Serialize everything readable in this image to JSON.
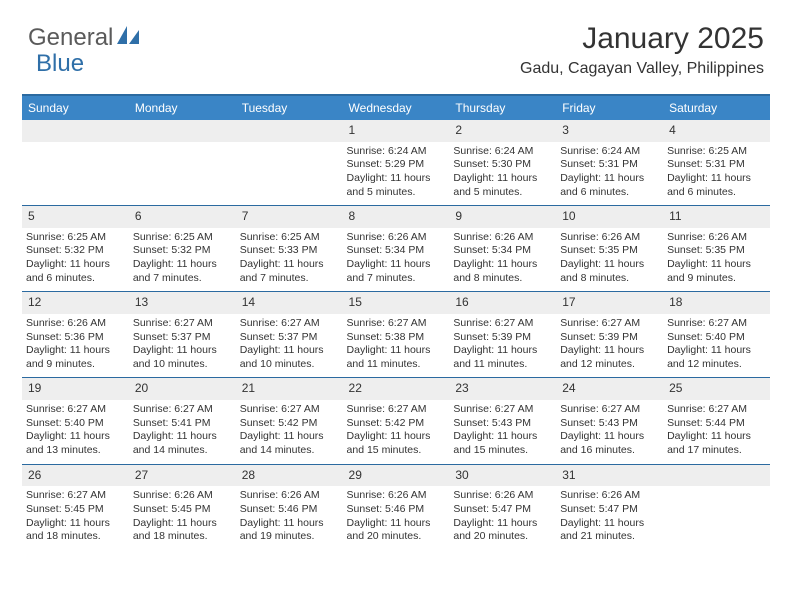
{
  "logo": {
    "text1": "General",
    "text2": "Blue",
    "accent_color": "#2f6fa8",
    "text_color": "#5a5a5a"
  },
  "header": {
    "month_title": "January 2025",
    "location": "Gadu, Cagayan Valley, Philippines"
  },
  "calendar": {
    "header_bg": "#3a85c6",
    "header_text_color": "#ffffff",
    "border_color": "#2b6aa0",
    "daynum_bg": "#eeeeee",
    "days_of_week": [
      "Sunday",
      "Monday",
      "Tuesday",
      "Wednesday",
      "Thursday",
      "Friday",
      "Saturday"
    ],
    "weeks": [
      [
        null,
        null,
        null,
        {
          "d": "1",
          "sr": "6:24 AM",
          "ss": "5:29 PM",
          "dl": "11 hours and 5 minutes."
        },
        {
          "d": "2",
          "sr": "6:24 AM",
          "ss": "5:30 PM",
          "dl": "11 hours and 5 minutes."
        },
        {
          "d": "3",
          "sr": "6:24 AM",
          "ss": "5:31 PM",
          "dl": "11 hours and 6 minutes."
        },
        {
          "d": "4",
          "sr": "6:25 AM",
          "ss": "5:31 PM",
          "dl": "11 hours and 6 minutes."
        }
      ],
      [
        {
          "d": "5",
          "sr": "6:25 AM",
          "ss": "5:32 PM",
          "dl": "11 hours and 6 minutes."
        },
        {
          "d": "6",
          "sr": "6:25 AM",
          "ss": "5:32 PM",
          "dl": "11 hours and 7 minutes."
        },
        {
          "d": "7",
          "sr": "6:25 AM",
          "ss": "5:33 PM",
          "dl": "11 hours and 7 minutes."
        },
        {
          "d": "8",
          "sr": "6:26 AM",
          "ss": "5:34 PM",
          "dl": "11 hours and 7 minutes."
        },
        {
          "d": "9",
          "sr": "6:26 AM",
          "ss": "5:34 PM",
          "dl": "11 hours and 8 minutes."
        },
        {
          "d": "10",
          "sr": "6:26 AM",
          "ss": "5:35 PM",
          "dl": "11 hours and 8 minutes."
        },
        {
          "d": "11",
          "sr": "6:26 AM",
          "ss": "5:35 PM",
          "dl": "11 hours and 9 minutes."
        }
      ],
      [
        {
          "d": "12",
          "sr": "6:26 AM",
          "ss": "5:36 PM",
          "dl": "11 hours and 9 minutes."
        },
        {
          "d": "13",
          "sr": "6:27 AM",
          "ss": "5:37 PM",
          "dl": "11 hours and 10 minutes."
        },
        {
          "d": "14",
          "sr": "6:27 AM",
          "ss": "5:37 PM",
          "dl": "11 hours and 10 minutes."
        },
        {
          "d": "15",
          "sr": "6:27 AM",
          "ss": "5:38 PM",
          "dl": "11 hours and 11 minutes."
        },
        {
          "d": "16",
          "sr": "6:27 AM",
          "ss": "5:39 PM",
          "dl": "11 hours and 11 minutes."
        },
        {
          "d": "17",
          "sr": "6:27 AM",
          "ss": "5:39 PM",
          "dl": "11 hours and 12 minutes."
        },
        {
          "d": "18",
          "sr": "6:27 AM",
          "ss": "5:40 PM",
          "dl": "11 hours and 12 minutes."
        }
      ],
      [
        {
          "d": "19",
          "sr": "6:27 AM",
          "ss": "5:40 PM",
          "dl": "11 hours and 13 minutes."
        },
        {
          "d": "20",
          "sr": "6:27 AM",
          "ss": "5:41 PM",
          "dl": "11 hours and 14 minutes."
        },
        {
          "d": "21",
          "sr": "6:27 AM",
          "ss": "5:42 PM",
          "dl": "11 hours and 14 minutes."
        },
        {
          "d": "22",
          "sr": "6:27 AM",
          "ss": "5:42 PM",
          "dl": "11 hours and 15 minutes."
        },
        {
          "d": "23",
          "sr": "6:27 AM",
          "ss": "5:43 PM",
          "dl": "11 hours and 15 minutes."
        },
        {
          "d": "24",
          "sr": "6:27 AM",
          "ss": "5:43 PM",
          "dl": "11 hours and 16 minutes."
        },
        {
          "d": "25",
          "sr": "6:27 AM",
          "ss": "5:44 PM",
          "dl": "11 hours and 17 minutes."
        }
      ],
      [
        {
          "d": "26",
          "sr": "6:27 AM",
          "ss": "5:45 PM",
          "dl": "11 hours and 18 minutes."
        },
        {
          "d": "27",
          "sr": "6:26 AM",
          "ss": "5:45 PM",
          "dl": "11 hours and 18 minutes."
        },
        {
          "d": "28",
          "sr": "6:26 AM",
          "ss": "5:46 PM",
          "dl": "11 hours and 19 minutes."
        },
        {
          "d": "29",
          "sr": "6:26 AM",
          "ss": "5:46 PM",
          "dl": "11 hours and 20 minutes."
        },
        {
          "d": "30",
          "sr": "6:26 AM",
          "ss": "5:47 PM",
          "dl": "11 hours and 20 minutes."
        },
        {
          "d": "31",
          "sr": "6:26 AM",
          "ss": "5:47 PM",
          "dl": "11 hours and 21 minutes."
        },
        null
      ]
    ],
    "labels": {
      "sunrise": "Sunrise:",
      "sunset": "Sunset:",
      "daylight": "Daylight:"
    }
  }
}
